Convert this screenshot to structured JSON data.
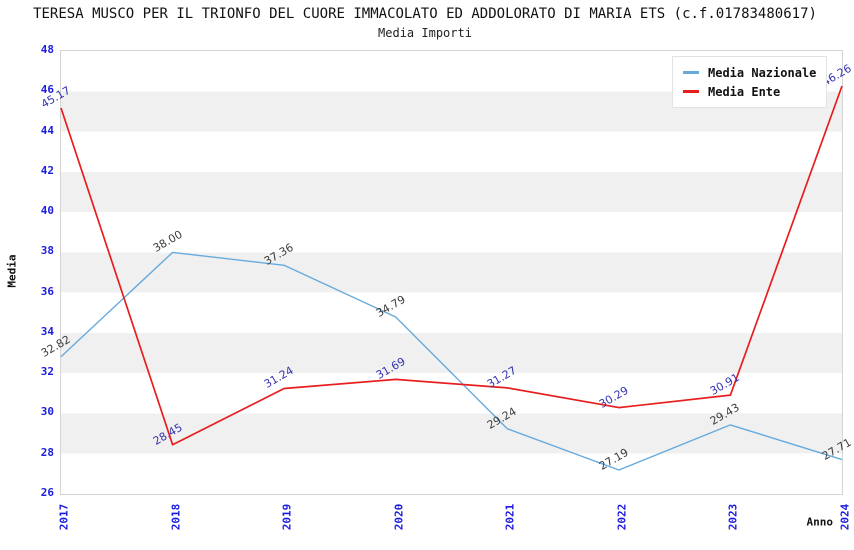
{
  "title": "TERESA MUSCO PER IL TRIONFO DEL CUORE IMMACOLATO ED ADDOLORATO DI MARIA ETS (c.f.01783480617)",
  "subtitle": "Media Importi",
  "colors": {
    "tick_label": "#1c1ce0",
    "band_gray": "#f0f0f0",
    "band_white": "#ffffff",
    "plot_border": "#d4d4d4"
  },
  "chart_data": {
    "type": "line",
    "categories": [
      "2017",
      "2018",
      "2019",
      "2020",
      "2021",
      "2022",
      "2023",
      "2024"
    ],
    "series": [
      {
        "name": "Media Nazionale",
        "color": "#66aadd",
        "label_color": "#3c3c3c",
        "line_width": 1.4,
        "values": [
          32.82,
          38.0,
          37.36,
          34.79,
          29.24,
          27.19,
          29.43,
          27.71
        ]
      },
      {
        "name": "Media Ente",
        "color": "#e81e1e",
        "label_color": "#3434b0",
        "line_width": 1.7,
        "values": [
          45.17,
          28.45,
          31.24,
          31.69,
          31.27,
          30.29,
          30.91,
          46.26
        ]
      }
    ],
    "title": "Media Importi",
    "xlabel": "Anno",
    "ylabel": "Media",
    "ylim": [
      26,
      48
    ],
    "yticks": [
      26,
      28,
      30,
      32,
      34,
      36,
      38,
      40,
      42,
      44,
      46,
      48
    ],
    "grid": "banded-horizontal",
    "legend_position": "top-right",
    "data_labels": "shown, rotated, 2 decimals"
  }
}
